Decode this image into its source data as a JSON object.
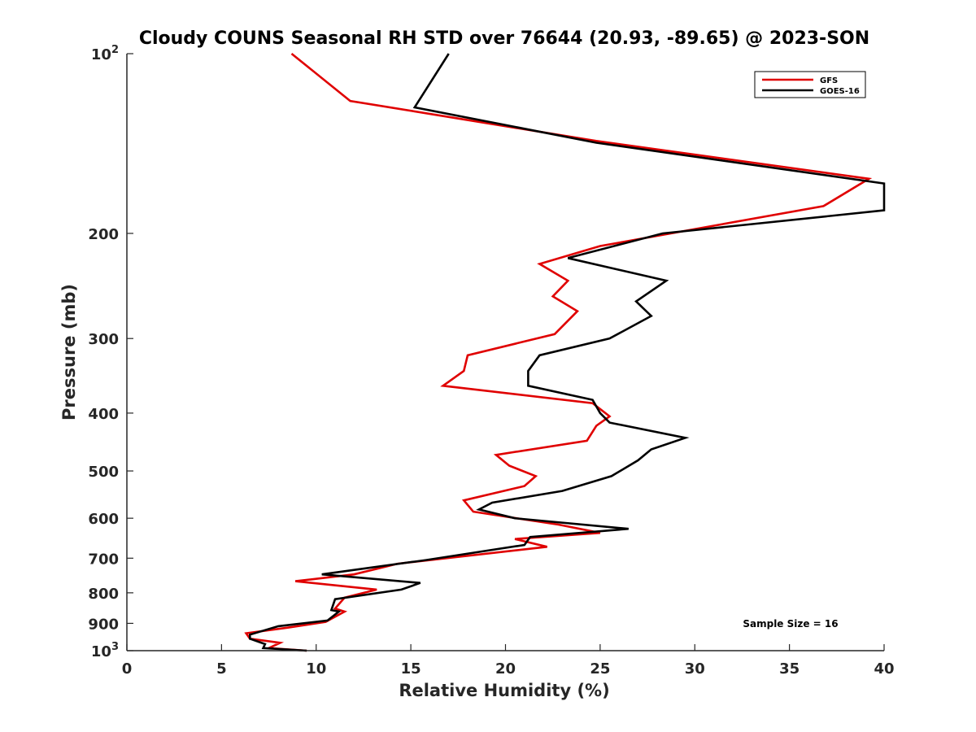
{
  "chart_data": {
    "type": "line",
    "title": "Cloudy COUNS Seasonal RH STD over 76644 (20.93, -89.65) @ 2023-SON",
    "xlabel": "Relative Humidity (%)",
    "ylabel": "Pressure (mb)",
    "xlim": [
      0,
      40
    ],
    "ylim": [
      100,
      1000
    ],
    "y_scale": "log",
    "y_reversed": true,
    "grid": false,
    "x_ticks": [
      0,
      5,
      10,
      15,
      20,
      25,
      30,
      35,
      40
    ],
    "x_tick_labels": [
      "0",
      "5",
      "10",
      "15",
      "20",
      "25",
      "30",
      "35",
      "40"
    ],
    "y_ticks": [
      100,
      200,
      300,
      400,
      500,
      600,
      700,
      800,
      900,
      1000
    ],
    "y_tick_labels": [
      {
        "base": "10",
        "exp": "2"
      },
      {
        "base": "200",
        "exp": ""
      },
      {
        "base": "300",
        "exp": ""
      },
      {
        "base": "400",
        "exp": ""
      },
      {
        "base": "500",
        "exp": ""
      },
      {
        "base": "600",
        "exp": ""
      },
      {
        "base": "700",
        "exp": ""
      },
      {
        "base": "800",
        "exp": ""
      },
      {
        "base": "900",
        "exp": ""
      },
      {
        "base": "10",
        "exp": "3"
      }
    ],
    "legend_position": "top-right",
    "annotation": "Sample Size = 16",
    "series": [
      {
        "name": "GFS",
        "color": "#e00000",
        "points": [
          [
            8.7,
            100
          ],
          [
            11.8,
            120
          ],
          [
            24.8,
            140
          ],
          [
            39.2,
            162
          ],
          [
            36.8,
            180
          ],
          [
            25.0,
            210
          ],
          [
            21.8,
            225
          ],
          [
            23.3,
            240
          ],
          [
            22.5,
            255
          ],
          [
            23.8,
            270
          ],
          [
            22.6,
            295
          ],
          [
            18.0,
            320
          ],
          [
            17.8,
            340
          ],
          [
            16.7,
            360
          ],
          [
            24.6,
            385
          ],
          [
            25.5,
            405
          ],
          [
            24.8,
            420
          ],
          [
            24.3,
            445
          ],
          [
            19.5,
            470
          ],
          [
            20.2,
            490
          ],
          [
            21.6,
            510
          ],
          [
            21.0,
            530
          ],
          [
            17.8,
            560
          ],
          [
            18.3,
            585
          ],
          [
            22.8,
            615
          ],
          [
            25.0,
            635
          ],
          [
            20.5,
            650
          ],
          [
            22.2,
            670
          ],
          [
            14.3,
            715
          ],
          [
            12.0,
            745
          ],
          [
            8.9,
            765
          ],
          [
            13.2,
            790
          ],
          [
            11.5,
            815
          ],
          [
            11.0,
            850
          ],
          [
            11.5,
            860
          ],
          [
            10.5,
            895
          ],
          [
            8.5,
            915
          ],
          [
            6.3,
            935
          ],
          [
            6.5,
            955
          ],
          [
            8.1,
            970
          ],
          [
            7.5,
            990
          ],
          [
            9.5,
            1000
          ]
        ]
      },
      {
        "name": "GOES-16",
        "color": "#000000",
        "points": [
          [
            17.0,
            100
          ],
          [
            15.2,
            123
          ],
          [
            24.8,
            141
          ],
          [
            40.0,
            165
          ],
          [
            40.0,
            183
          ],
          [
            28.3,
            200
          ],
          [
            23.3,
            220
          ],
          [
            28.5,
            240
          ],
          [
            26.9,
            260
          ],
          [
            27.7,
            275
          ],
          [
            25.5,
            300
          ],
          [
            21.8,
            320
          ],
          [
            21.2,
            340
          ],
          [
            21.2,
            360
          ],
          [
            24.6,
            380
          ],
          [
            25.0,
            400
          ],
          [
            25.5,
            415
          ],
          [
            29.5,
            440
          ],
          [
            27.7,
            460
          ],
          [
            27.0,
            480
          ],
          [
            25.6,
            510
          ],
          [
            23.0,
            540
          ],
          [
            19.3,
            565
          ],
          [
            18.6,
            580
          ],
          [
            20.5,
            600
          ],
          [
            26.5,
            625
          ],
          [
            21.3,
            645
          ],
          [
            21.0,
            665
          ],
          [
            15.8,
            705
          ],
          [
            10.3,
            745
          ],
          [
            15.5,
            770
          ],
          [
            14.5,
            790
          ],
          [
            11.0,
            820
          ],
          [
            10.8,
            855
          ],
          [
            11.2,
            860
          ],
          [
            10.6,
            890
          ],
          [
            8.0,
            910
          ],
          [
            6.5,
            940
          ],
          [
            6.5,
            955
          ],
          [
            7.3,
            975
          ],
          [
            7.2,
            990
          ],
          [
            9.5,
            1000
          ]
        ]
      }
    ]
  }
}
